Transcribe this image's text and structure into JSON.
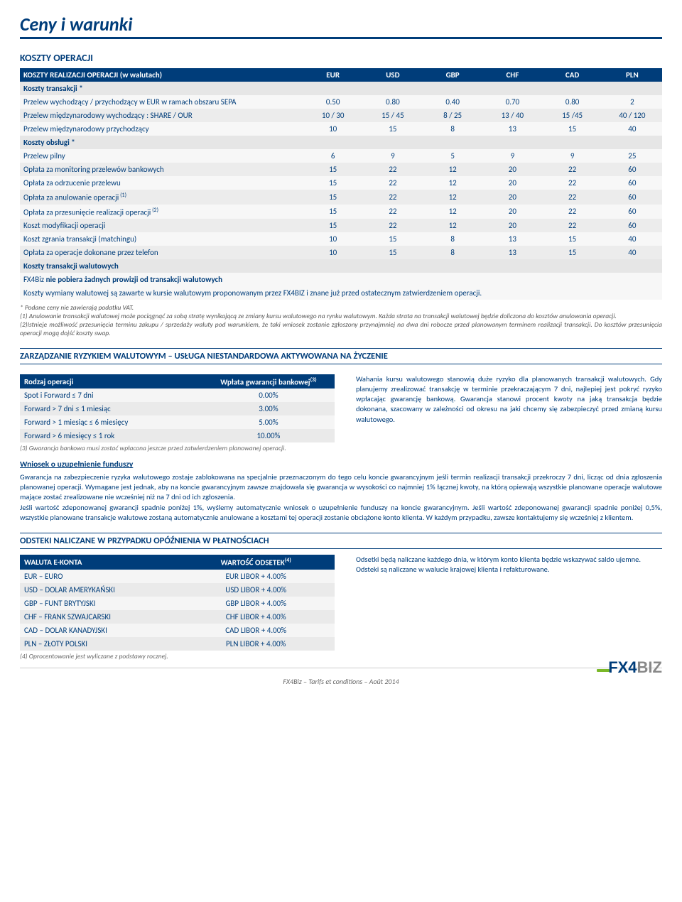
{
  "page_title": "Ceny i warunki",
  "section_costs_title": "KOSZTY OPERACJI",
  "main_table": {
    "header": [
      "KOSZTY REALIZACJI OPERACJI (w walutach)",
      "EUR",
      "USD",
      "GBP",
      "CHF",
      "CAD",
      "PLN"
    ],
    "group1_label": "Koszty transakcji *",
    "rows1": [
      {
        "label": "Przelew wychodzący / przychodzący w EUR w ramach obszaru SEPA",
        "vals": [
          "0.50",
          "0.80",
          "0.40",
          "0.70",
          "0.80",
          "2"
        ],
        "cls": "row-lt"
      },
      {
        "label": "Przelew międzynarodowy wychodzący : SHARE / OUR",
        "vals": [
          "10 / 30",
          "15 / 45",
          "8 / 25",
          "13 / 40",
          "15 /45",
          "40 / 120"
        ],
        "cls": "row-dk"
      },
      {
        "label": "Przelew międzynarodowy przychodzący",
        "vals": [
          "10",
          "15",
          "8",
          "13",
          "15",
          "40"
        ],
        "cls": "row-lt"
      }
    ],
    "group2_label": "Koszty obsługi *",
    "rows2": [
      {
        "label": "Przelew pilny",
        "vals": [
          "6",
          "9",
          "5",
          "9",
          "9",
          "25"
        ],
        "cls": "row-lt"
      },
      {
        "label": "Opłata za monitoring przelewów bankowych",
        "vals": [
          "15",
          "22",
          "12",
          "20",
          "22",
          "60"
        ],
        "cls": "row-dk"
      },
      {
        "label": "Opłata za odrzucenie przelewu",
        "vals": [
          "15",
          "22",
          "12",
          "20",
          "22",
          "60"
        ],
        "cls": "row-lt"
      },
      {
        "label": "Opłata za anulowanie operacji",
        "sup": "(1)",
        "vals": [
          "15",
          "22",
          "12",
          "20",
          "22",
          "60"
        ],
        "cls": "row-dk"
      },
      {
        "label": "Opłata za przesunięcie realizacji operacji",
        "sup": "(2)",
        "vals": [
          "15",
          "22",
          "12",
          "20",
          "22",
          "60"
        ],
        "cls": "row-lt"
      },
      {
        "label": "Koszt modyfikacji operacji",
        "vals": [
          "15",
          "22",
          "12",
          "20",
          "22",
          "60"
        ],
        "cls": "row-dk"
      },
      {
        "label": "Koszt zgrania transakcji (matchingu)",
        "vals": [
          "10",
          "15",
          "8",
          "13",
          "15",
          "40"
        ],
        "cls": "row-lt"
      },
      {
        "label": "Opłata za operacje dokonane przez telefon",
        "vals": [
          "10",
          "15",
          "8",
          "13",
          "15",
          "40"
        ],
        "cls": "row-dk"
      }
    ],
    "group3_label": "Koszty transakcji walutowych",
    "note_bold": "FX4Biz nie pobiera żadnych prowizji od transakcji walutowych",
    "note_plain": "Koszty wymiany walutowej są zawarte w kursie walutowym proponowanym przez FX4BIZ i znane już przed ostatecznym zatwierdzeniem operacji."
  },
  "footnotes": [
    "*   Podane ceny nie zawierają podatku VAT.",
    "(1) Anulowanie  transakcji walutowej może pociągnąć za sobą stratę wynikającą ze zmiany kursu walutowego na rynku walutowym. Każda strata na transakcji walutowej będzie doliczona do kosztów anulowania operacji.",
    "(2)Istnieje możliwość przesunięcia terminu zakupu / sprzedaży waluty pod warunkiem, że taki wniosek zostanie zgłoszony przynajmniej na dwa dni robocze przed planowanym terminem realizacji transakcji. Do kosztów przesunięcia operacji mogą dojść koszty swap."
  ],
  "risk_bar": "ZARZĄDZANIE RYZYKIEM WALUTOWYM – USŁUGA NIESTANDARDOWA AKTYWOWANA NA ŻYCZENIE",
  "guarantee_table": {
    "header": [
      "Rodzaj operacji",
      "Wpłata gwarancji bankowej"
    ],
    "header_sup": "(3)",
    "rows": [
      {
        "label": "Spot i Forward ≤ 7 dni",
        "val": "0.00%",
        "cls": "a"
      },
      {
        "label": "Forward > 7 dni ≤ 1 miesiąc",
        "val": "3.00%",
        "cls": "b"
      },
      {
        "label": "Forward > 1 miesiąc ≤ 6 miesięcy",
        "val": "5.00%",
        "cls": "a"
      },
      {
        "label": "Forward > 6 miesięcy ≤ 1 rok",
        "val": "10.00%",
        "cls": "b"
      }
    ],
    "caption": "(3) Gwarancja bankowa musi zostać wpłacona jeszcze przed zatwierdzeniem planowanej operacji."
  },
  "risk_paragraph": "Wahania kursu walutowego stanowią duże ryzyko dla planowanych transakcji walutowych. Gdy planujemy zrealizować transakcję w terminie przekraczającym 7 dni, najlepiej jest pokryć ryzyko wpłacając gwarancję bankową. Gwarancja stanowi procent kwoty na jaką transakcja będzie dokonana, szacowany w zależności od okresu na jaki chcemy się zabezpieczyć przed zmianą kursu  walutowego.",
  "wniosek": {
    "title": "Wniosek o uzupełnienie funduszy",
    "body": "Gwarancja na zabezpieczenie ryzyka walutowego zostaje zablokowana na specjalnie przeznaczonym do tego celu koncie gwarancyjnym  jeśli termin realizacji transakcji przekroczy 7 dni, licząc od dnia zgłoszenia planowanej operacji. Wymagane jest jednak, aby na koncie gwarancyjnym zawsze znajdowała się  gwarancja w wysokości co najmniej 1% łącznej kwoty, na którą opiewają wszystkie planowane operacje walutowe mające zostać zrealizowane  nie wcześniej niż na 7 dni od ich zgłoszenia.\nJeśli wartość zdeponowanej gwarancji spadnie poniżej 1%, wyślemy automatycznie wniosek o uzupełnienie funduszy na koncie gwarancyjnym. Jeśli wartość zdeponowanej gwarancji spadnie poniżej 0,5%, wszystkie planowane transakcje walutowe zostaną automatycznie anulowane a kosztami tej operacji zostanie obciążone  konto klienta. W każdym przypadku, zawsze kontaktujemy się wcześniej z klientem."
  },
  "interest_bar": "ODSTEKI NALICZANE W PRZYPADKU OPÓŹNIENIA W PŁATNOŚCIACH",
  "interest_table": {
    "header": [
      "WALUTA E-KONTA",
      "WARTOŚĆ ODSETEK"
    ],
    "header_sup": "(4)",
    "rows": [
      {
        "label": "EUR – EURO",
        "val": "EUR LIBOR + 4.00%",
        "cls": "a"
      },
      {
        "label": "USD – DOLAR AMERYKAŃSKI",
        "val": "USD LIBOR + 4.00%",
        "cls": "b"
      },
      {
        "label": "GBP – FUNT BRYTYJSKI",
        "val": "GBP LIBOR + 4.00%",
        "cls": "a"
      },
      {
        "label": "CHF – FRANK SZWAJCARSKI",
        "val": "CHF LIBOR + 4.00%",
        "cls": "b"
      },
      {
        "label": "CAD – DOLAR KANADYJSKI",
        "val": "CAD LIBOR + 4.00%",
        "cls": "a"
      },
      {
        "label": "PLN – ZŁOTY POLSKI",
        "val": "PLN LIBOR + 4.00%",
        "cls": "b"
      }
    ],
    "caption": "(4) Oprocentowanie jest wyliczane z podstawy rocznej."
  },
  "interest_paragraph": "Odsetki będą naliczane każdego dnia, w którym konto klienta będzie wskazywać saldo ujemne.\nOdsteki są naliczane w walucie krajowej klienta i refakturowane.",
  "footer": "FX4Biz  –  Tarifs et conditions – Août 2014",
  "logo": {
    "fx4": "FX4",
    "biz": "BIZ"
  }
}
